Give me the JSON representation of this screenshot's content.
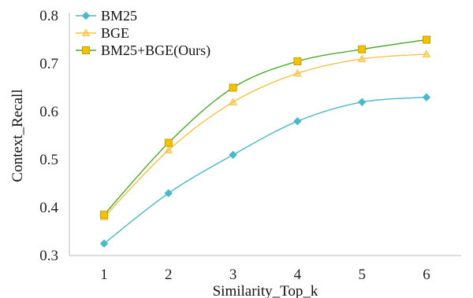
{
  "chart_data": {
    "type": "line",
    "xlabel": "Similarity_Top_k",
    "ylabel": "Context_Recall",
    "x": [
      1,
      2,
      3,
      4,
      5,
      6
    ],
    "xticks": [
      "1",
      "2",
      "3",
      "4",
      "5",
      "6"
    ],
    "ylim": [
      0.3,
      0.8
    ],
    "yticks": [
      "0.3",
      "0.4",
      "0.5",
      "0.6",
      "0.7",
      "0.8"
    ],
    "grid": false,
    "legend_position": "top-left",
    "series": [
      {
        "name": "BM25",
        "color": "#4BB8C6",
        "marker": "diamond",
        "values": [
          0.325,
          0.43,
          0.51,
          0.58,
          0.62,
          0.63
        ]
      },
      {
        "name": "BGE",
        "color": "#F5C242",
        "marker": "triangle",
        "values": [
          0.38,
          0.52,
          0.62,
          0.68,
          0.71,
          0.72
        ]
      },
      {
        "name": "BM25+BGE(Ours)",
        "color": "#4EAA2D",
        "marker": "square",
        "values": [
          0.385,
          0.535,
          0.65,
          0.705,
          0.73,
          0.75
        ]
      }
    ]
  }
}
